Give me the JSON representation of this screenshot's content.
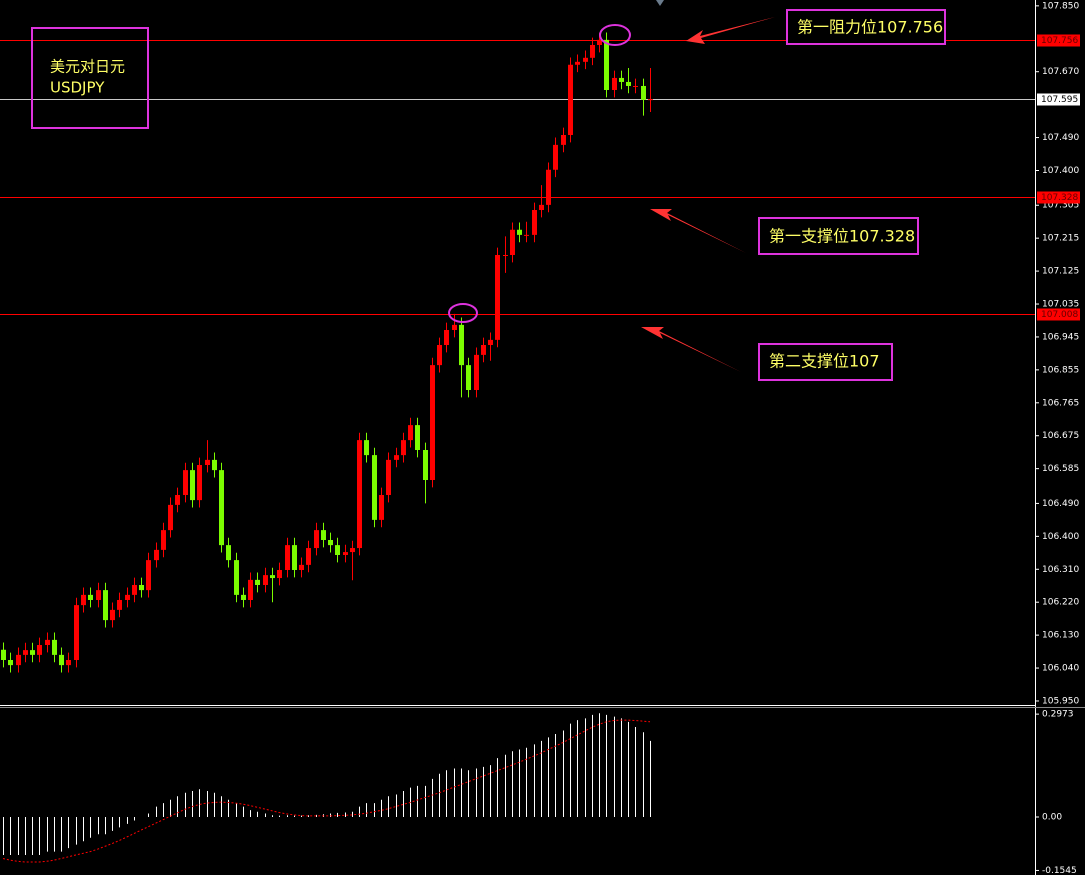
{
  "chart_data": [
    {
      "type": "candlestick",
      "annotations": [
        "美元对日元",
        "USDJPY",
        "第一阻力位107.756",
        "第一支撑位107.328",
        "第二支撑位107"
      ],
      "color_up": "#ff0000",
      "color_down": "#7cfc00",
      "open": [
        106.09,
        106.062,
        106.048,
        106.076,
        106.089,
        106.076,
        106.103,
        106.117,
        106.076,
        106.048,
        106.062,
        106.212,
        106.24,
        106.226,
        106.253,
        106.171,
        106.199,
        106.226,
        106.24,
        106.267,
        106.253,
        106.335,
        106.363,
        106.417,
        106.486,
        106.513,
        106.581,
        106.499,
        106.595,
        106.609,
        106.581,
        106.376,
        106.335,
        106.24,
        106.226,
        106.281,
        106.267,
        106.294,
        106.286,
        106.308,
        106.376,
        106.308,
        106.322,
        106.368,
        106.417,
        106.39,
        106.376,
        106.349,
        106.357,
        106.368,
        106.663,
        106.622,
        106.445,
        106.513,
        106.609,
        106.622,
        106.663,
        106.704,
        106.636,
        106.554,
        106.868,
        106.923,
        106.964,
        106.978,
        106.868,
        106.8,
        106.896,
        106.923,
        106.937,
        107.169,
        107.169,
        107.238,
        107.224,
        107.224,
        107.292,
        107.306,
        107.402,
        107.47,
        107.497,
        107.689,
        107.697,
        107.708,
        107.743,
        107.757,
        107.62,
        107.653,
        107.642,
        107.631,
        107.631,
        107.593
      ],
      "high": [
        106.11,
        106.082,
        106.096,
        106.109,
        106.109,
        106.123,
        106.137,
        106.137,
        106.096,
        106.082,
        106.232,
        106.26,
        106.26,
        106.273,
        106.273,
        106.219,
        106.246,
        106.26,
        106.287,
        106.287,
        106.355,
        106.383,
        106.437,
        106.506,
        106.533,
        106.601,
        106.601,
        106.615,
        106.663,
        106.629,
        106.601,
        106.396,
        106.355,
        106.26,
        106.301,
        106.301,
        106.314,
        106.314,
        106.328,
        106.396,
        106.396,
        106.342,
        106.388,
        106.437,
        106.437,
        106.41,
        106.396,
        106.377,
        106.388,
        106.683,
        106.683,
        106.642,
        106.533,
        106.629,
        106.642,
        106.683,
        106.724,
        106.724,
        106.656,
        106.888,
        106.943,
        106.984,
        107.008,
        106.998,
        106.888,
        106.916,
        106.943,
        106.957,
        107.189,
        107.22,
        107.258,
        107.258,
        107.26,
        107.312,
        107.36,
        107.422,
        107.49,
        107.517,
        107.709,
        107.717,
        107.728,
        107.763,
        107.775,
        107.777,
        107.673,
        107.673,
        107.68,
        107.651,
        107.651,
        107.68
      ],
      "low": [
        106.042,
        106.028,
        106.028,
        106.056,
        106.056,
        106.056,
        106.083,
        106.056,
        106.028,
        106.028,
        106.042,
        106.192,
        106.206,
        106.206,
        106.151,
        106.151,
        106.179,
        106.206,
        106.22,
        106.233,
        106.233,
        106.315,
        106.343,
        106.397,
        106.466,
        106.493,
        106.479,
        106.479,
        106.575,
        106.561,
        106.356,
        106.315,
        106.22,
        106.206,
        106.206,
        106.247,
        106.247,
        106.22,
        106.266,
        106.288,
        106.288,
        106.288,
        106.302,
        106.348,
        106.37,
        106.356,
        106.329,
        106.329,
        106.28,
        106.348,
        106.602,
        106.425,
        106.425,
        106.493,
        106.589,
        106.602,
        106.643,
        106.616,
        106.49,
        106.534,
        106.848,
        106.903,
        106.944,
        106.78,
        106.78,
        106.78,
        106.876,
        106.88,
        106.917,
        107.12,
        107.149,
        107.204,
        107.204,
        107.204,
        107.272,
        107.286,
        107.382,
        107.45,
        107.477,
        107.669,
        107.677,
        107.688,
        107.723,
        107.6,
        107.6,
        107.622,
        107.611,
        107.611,
        107.55,
        107.56
      ],
      "close": [
        106.062,
        106.048,
        106.076,
        106.089,
        106.076,
        106.103,
        106.117,
        106.076,
        106.048,
        106.062,
        106.212,
        106.24,
        106.226,
        106.253,
        106.171,
        106.199,
        106.226,
        106.24,
        106.267,
        106.253,
        106.335,
        106.363,
        106.417,
        106.486,
        106.513,
        106.581,
        106.499,
        106.595,
        106.609,
        106.581,
        106.376,
        106.335,
        106.24,
        106.226,
        106.281,
        106.267,
        106.294,
        106.286,
        106.308,
        106.376,
        106.308,
        106.322,
        106.368,
        106.417,
        106.39,
        106.376,
        106.349,
        106.357,
        106.368,
        106.663,
        106.622,
        106.445,
        106.513,
        106.609,
        106.622,
        106.663,
        106.704,
        106.636,
        106.554,
        106.868,
        106.923,
        106.964,
        106.978,
        106.868,
        106.8,
        106.896,
        106.923,
        106.937,
        107.169,
        107.169,
        107.238,
        107.224,
        107.224,
        107.292,
        107.306,
        107.402,
        107.47,
        107.497,
        107.689,
        107.697,
        107.708,
        107.743,
        107.757,
        107.62,
        107.653,
        107.642,
        107.631,
        107.631,
        107.593,
        107.595
      ],
      "levels": [
        {
          "value": 107.756,
          "color": "#ff0000"
        },
        {
          "value": 107.595,
          "color": "#c8c8c8"
        },
        {
          "value": 107.328,
          "color": "#ff0000"
        },
        {
          "value": 107.008,
          "color": "#ff0000"
        }
      ],
      "ylim": [
        105.939,
        107.866
      ],
      "yticks": [
        {
          "value": 107.85,
          "label": "107.850"
        },
        {
          "value": 107.67,
          "label": "107.670"
        },
        {
          "value": 107.49,
          "label": "107.490"
        },
        {
          "value": 107.4,
          "label": "107.400"
        },
        107.305,
        107.215,
        107.125,
        107.035,
        106.945,
        106.855,
        106.765,
        106.675,
        106.585,
        {
          "value": 106.49,
          "label": "106.490"
        },
        {
          "value": 106.4,
          "label": "106.400"
        },
        {
          "value": 106.31,
          "label": "106.310"
        },
        {
          "value": 106.22,
          "label": "106.220"
        },
        {
          "value": 106.13,
          "label": "106.130"
        },
        {
          "value": 106.04,
          "label": "106.040"
        },
        {
          "value": 105.95,
          "label": "105.950"
        }
      ]
    },
    {
      "type": "macd",
      "color": "#ffffff",
      "signal_color": "#ff0000",
      "values": [
        -0.11,
        -0.11,
        -0.11,
        -0.11,
        -0.11,
        -0.11,
        -0.1,
        -0.1,
        -0.1,
        -0.09,
        -0.08,
        -0.07,
        -0.06,
        -0.05,
        -0.05,
        -0.04,
        -0.03,
        -0.02,
        -0.01,
        0.0,
        0.01,
        0.03,
        0.04,
        0.05,
        0.06,
        0.07,
        0.075,
        0.08,
        0.075,
        0.07,
        0.06,
        0.05,
        0.04,
        0.03,
        0.02,
        0.015,
        0.01,
        0.005,
        0.004,
        0.005,
        0.004,
        0.004,
        0.005,
        0.006,
        0.008,
        0.01,
        0.012,
        0.013,
        0.015,
        0.03,
        0.04,
        0.04,
        0.05,
        0.06,
        0.065,
        0.075,
        0.085,
        0.09,
        0.09,
        0.11,
        0.125,
        0.135,
        0.14,
        0.14,
        0.135,
        0.14,
        0.145,
        0.15,
        0.17,
        0.18,
        0.19,
        0.195,
        0.2,
        0.21,
        0.22,
        0.23,
        0.24,
        0.25,
        0.27,
        0.28,
        0.285,
        0.295,
        0.3,
        0.295,
        0.29,
        0.285,
        0.275,
        0.26,
        0.245,
        0.22
      ],
      "signal": [
        -0.12,
        -0.125,
        -0.128,
        -0.13,
        -0.13,
        -0.13,
        -0.128,
        -0.125,
        -0.12,
        -0.115,
        -0.11,
        -0.105,
        -0.1,
        -0.093,
        -0.085,
        -0.077,
        -0.068,
        -0.058,
        -0.048,
        -0.038,
        -0.028,
        -0.018,
        -0.008,
        0.002,
        0.012,
        0.022,
        0.03,
        0.036,
        0.04,
        0.042,
        0.043,
        0.042,
        0.04,
        0.037,
        0.033,
        0.028,
        0.023,
        0.018,
        0.013,
        0.009,
        0.006,
        0.004,
        0.003,
        0.003,
        0.003,
        0.003,
        0.004,
        0.005,
        0.006,
        0.008,
        0.011,
        0.015,
        0.019,
        0.024,
        0.03,
        0.036,
        0.042,
        0.049,
        0.056,
        0.063,
        0.07,
        0.078,
        0.086,
        0.094,
        0.102,
        0.11,
        0.118,
        0.126,
        0.134,
        0.142,
        0.15,
        0.158,
        0.167,
        0.176,
        0.185,
        0.195,
        0.205,
        0.215,
        0.226,
        0.237,
        0.248,
        0.259,
        0.268,
        0.275,
        0.279,
        0.28,
        0.28,
        0.279,
        0.277,
        0.275
      ],
      "ylim": [
        -0.159,
        0.315
      ],
      "yticks": [
        0.2973,
        {
          "value": 0,
          "label": "0.00"
        },
        -0.1545
      ]
    }
  ]
}
